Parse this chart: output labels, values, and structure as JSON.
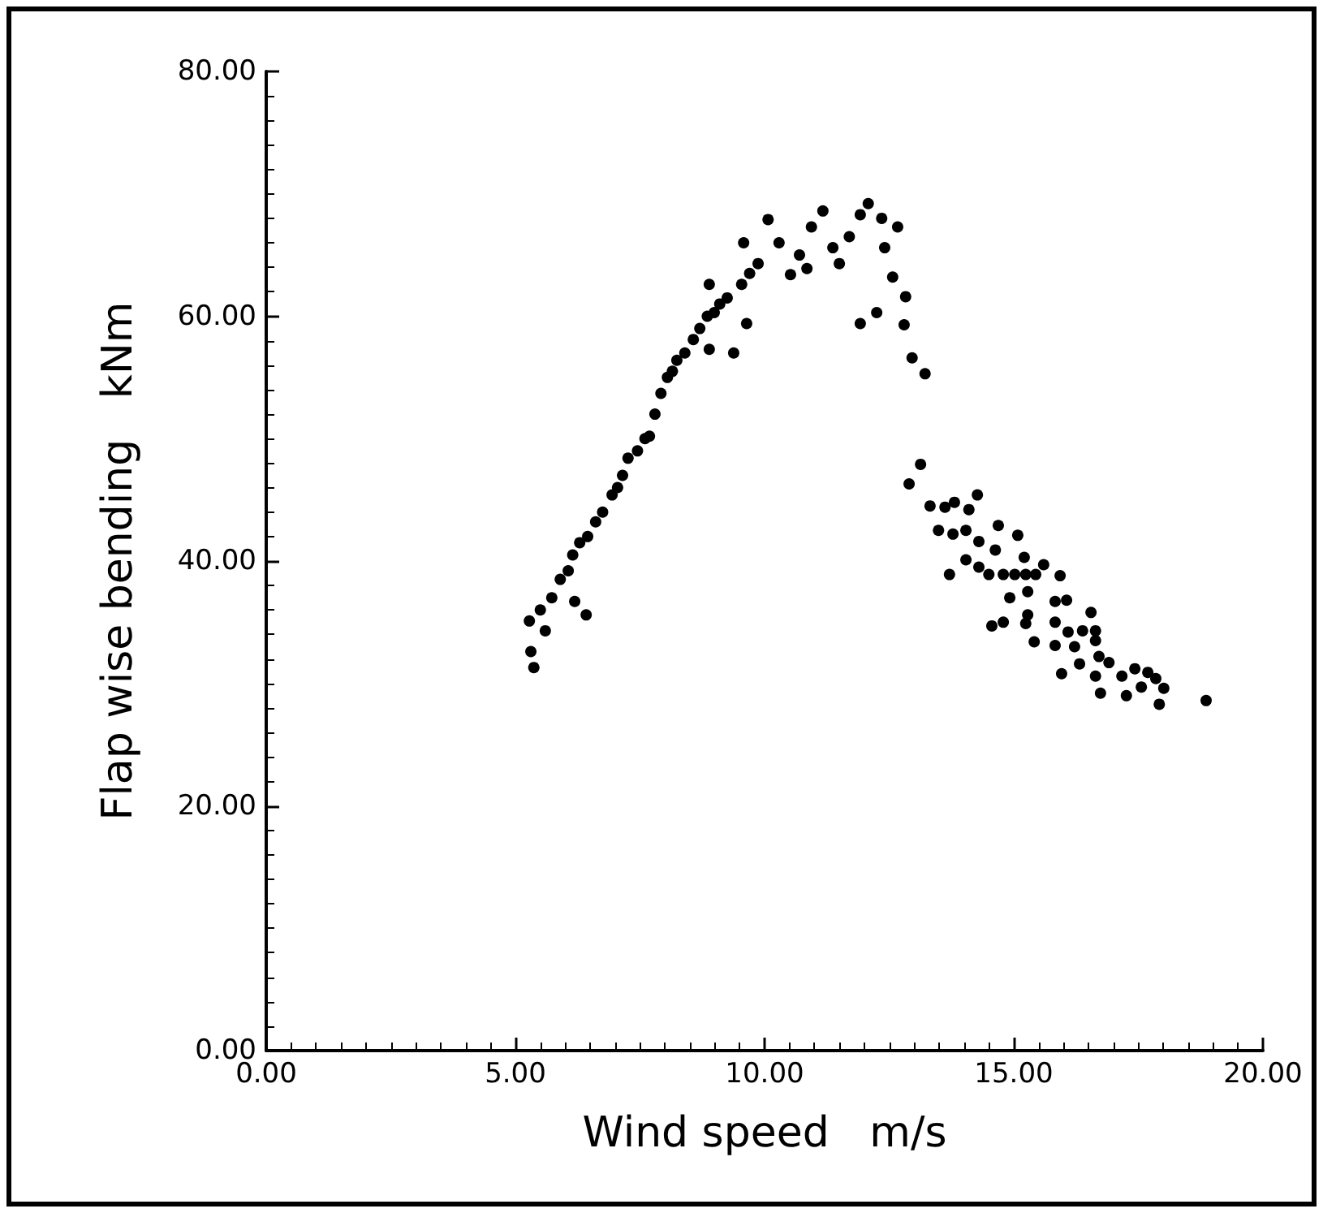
{
  "chart_data": {
    "type": "scatter",
    "xlabel": "Wind speed   m/s",
    "ylabel": "Flap wise bending   kNm",
    "xlim": [
      0,
      20
    ],
    "ylim": [
      0,
      80
    ],
    "xticks": [
      {
        "value": 0,
        "label": "0.00"
      },
      {
        "value": 5,
        "label": "5.00"
      },
      {
        "value": 10,
        "label": "10.00"
      },
      {
        "value": 15,
        "label": "15.00"
      },
      {
        "value": 20,
        "label": "20.00"
      }
    ],
    "yticks": [
      {
        "value": 0,
        "label": "0.00"
      },
      {
        "value": 20,
        "label": "20.00"
      },
      {
        "value": 40,
        "label": "40.00"
      },
      {
        "value": 60,
        "label": "60.00"
      },
      {
        "value": 80,
        "label": "80.00"
      }
    ],
    "grid": false,
    "marker": "circle",
    "series": [
      {
        "color": "#000000",
        "x": [
          5.37,
          5.31,
          5.28,
          5.6,
          6.42,
          6.19,
          5.73,
          6.06,
          6.29,
          6.61,
          6.94,
          5.5,
          5.9,
          6.15,
          6.45,
          6.75,
          7.05,
          7.15,
          7.26,
          7.45,
          7.6,
          7.69,
          7.8,
          7.92,
          8.05,
          8.15,
          8.24,
          8.4,
          8.57,
          8.7,
          8.85,
          8.99,
          9.38,
          8.89,
          9.1,
          9.25,
          9.54,
          8.89,
          9.7,
          9.87,
          9.64,
          10.07,
          10.29,
          9.58,
          10.52,
          10.7,
          10.85,
          10.94,
          11.17,
          11.37,
          11.5,
          11.7,
          11.92,
          12.08,
          12.35,
          12.67,
          11.92,
          12.25,
          12.57,
          12.41,
          12.83,
          12.8,
          12.96,
          13.22,
          13.13,
          12.9,
          13.32,
          13.62,
          13.81,
          14.27,
          14.1,
          13.49,
          13.78,
          14.04,
          14.69,
          15.08,
          14.3,
          14.63,
          14.04,
          14.3,
          13.71,
          14.5,
          14.79,
          15.02,
          15.24,
          15.44,
          15.21,
          15.6,
          15.93,
          14.92,
          15.28,
          15.83,
          16.06,
          16.55,
          15.28,
          15.24,
          14.79,
          14.56,
          15.83,
          16.09,
          16.38,
          16.64,
          15.41,
          15.83,
          16.22,
          16.64,
          16.71,
          16.91,
          16.32,
          15.96,
          16.64,
          17.17,
          17.43,
          17.69,
          17.85,
          17.56,
          18.01,
          16.74,
          17.26,
          17.92,
          18.86
        ],
        "values": [
          31.3,
          32.6,
          35.1,
          34.3,
          35.6,
          36.7,
          37.0,
          39.2,
          41.5,
          43.2,
          45.4,
          36.0,
          38.5,
          40.5,
          42.0,
          44.0,
          46.0,
          47.0,
          48.4,
          49.0,
          50.0,
          50.2,
          52.0,
          53.7,
          55.0,
          55.5,
          56.4,
          57.0,
          58.1,
          59.0,
          60.0,
          60.3,
          57.0,
          57.3,
          61.0,
          61.5,
          62.6,
          62.6,
          63.5,
          64.3,
          59.4,
          67.9,
          66.0,
          66.0,
          63.4,
          65.0,
          63.9,
          67.3,
          68.6,
          65.6,
          64.3,
          66.5,
          68.3,
          69.2,
          68.0,
          67.3,
          59.4,
          60.3,
          63.2,
          65.6,
          61.6,
          59.3,
          56.6,
          55.3,
          47.9,
          46.3,
          44.5,
          44.4,
          44.8,
          45.4,
          44.2,
          42.5,
          42.2,
          42.5,
          42.9,
          42.1,
          41.6,
          40.9,
          40.1,
          39.5,
          38.9,
          38.9,
          38.9,
          38.9,
          38.9,
          38.9,
          40.3,
          39.7,
          38.8,
          37.0,
          37.5,
          36.7,
          36.8,
          35.8,
          35.6,
          34.9,
          35.0,
          34.7,
          35.0,
          34.2,
          34.3,
          34.3,
          33.4,
          33.1,
          33.0,
          33.5,
          32.2,
          31.7,
          31.6,
          30.8,
          30.6,
          30.6,
          31.2,
          30.9,
          30.4,
          29.7,
          29.6,
          29.2,
          29.0,
          28.3,
          28.6
        ]
      }
    ]
  }
}
